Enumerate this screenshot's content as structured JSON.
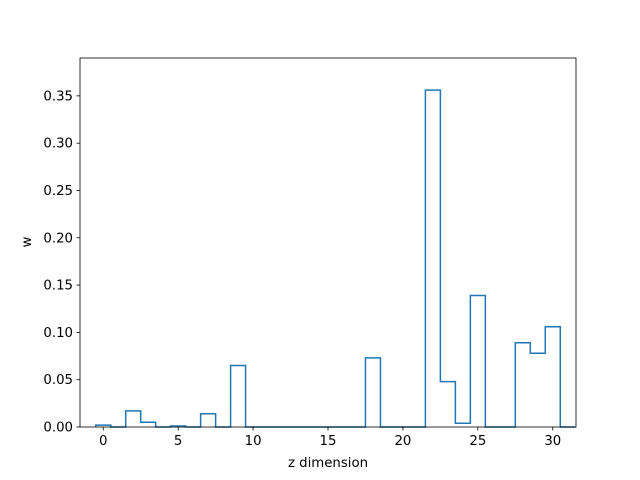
{
  "chart_data": {
    "type": "bar",
    "style": "step-histogram",
    "title": "",
    "xlabel": "z dimension",
    "ylabel": "w",
    "xlim": [
      -1.55,
      31.55
    ],
    "ylim": [
      0,
      0.39
    ],
    "xticks": [
      0,
      5,
      10,
      15,
      20,
      25,
      30
    ],
    "yticks": [
      0.0,
      0.05,
      0.1,
      0.15,
      0.2,
      0.25,
      0.3,
      0.35
    ],
    "xtick_labels": [
      "0",
      "5",
      "10",
      "15",
      "20",
      "25",
      "30"
    ],
    "ytick_labels": [
      "0.00",
      "0.05",
      "0.10",
      "0.15",
      "0.20",
      "0.25",
      "0.30",
      "0.35"
    ],
    "categories": [
      0,
      1,
      2,
      3,
      4,
      5,
      6,
      7,
      8,
      9,
      10,
      11,
      12,
      13,
      14,
      15,
      16,
      17,
      18,
      19,
      20,
      21,
      22,
      23,
      24,
      25,
      26,
      27,
      28,
      29,
      30,
      31
    ],
    "values": [
      0.002,
      0.0,
      0.017,
      0.005,
      0.0,
      0.001,
      0.0,
      0.014,
      0.0,
      0.065,
      0.0,
      0.0,
      0.0,
      0.0,
      0.0,
      0.0,
      0.0,
      0.0,
      0.073,
      0.0,
      0.0,
      0.0,
      0.356,
      0.048,
      0.004,
      0.139,
      0.0,
      0.0,
      0.089,
      0.078,
      0.106,
      0.0
    ],
    "grid": false,
    "colors": {
      "line": "#1f77b4",
      "axes": "#000000",
      "background": "#ffffff"
    }
  }
}
